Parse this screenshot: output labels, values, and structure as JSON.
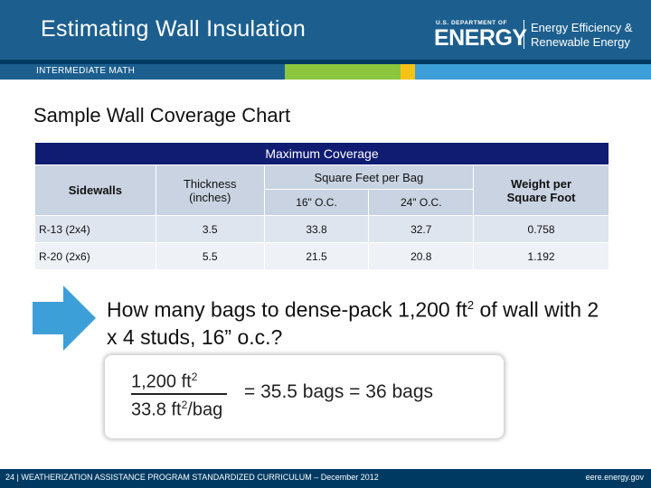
{
  "header": {
    "title": "Estimating Wall Insulation",
    "logo": {
      "dept": "U.S. DEPARTMENT OF",
      "name": "ENERGY",
      "line1": "Energy Efficiency &",
      "line2": "Renewable Energy"
    }
  },
  "level_label": "INTERMEDIATE MATH",
  "subtitle": "Sample Wall Coverage Chart",
  "table": {
    "caption": "Maximum Coverage",
    "headers": {
      "sidewalls": "Sidewalls",
      "thickness": "Thickness",
      "thickness_unit": "(inches)",
      "sqft_per_bag": "Square Feet per Bag",
      "oc16": "16\" O.C.",
      "oc24": "24\" O.C.",
      "weight": "Weight per Square Foot"
    },
    "rows": [
      {
        "sidewall": "R-13 (2x4)",
        "thickness": "3.5",
        "oc16": "33.8",
        "oc24": "32.7",
        "weight": "0.758"
      },
      {
        "sidewall": "R-20 (2x6)",
        "thickness": "5.5",
        "oc16": "21.5",
        "oc24": "20.8",
        "weight": "1.192"
      }
    ]
  },
  "question": {
    "part1": "How many bags to dense-pack 1,200 ft",
    "sup": "2",
    "part2": " of wall with 2 x 4 studs, 16” o.c.?"
  },
  "answer": {
    "numerator": "1,200 ft",
    "numerator_sup": "2",
    "denominator": "33.8 ft",
    "denominator_sup": "2",
    "denominator_tail": "/bag",
    "result": "= 35.5 bags = 36 bags"
  },
  "footer": {
    "left": "24 | WEATHERIZATION ASSISTANCE PROGRAM STANDARDIZED CURRICULUM – December 2012",
    "right": "eere.energy.gov"
  },
  "colors": {
    "header_blue": "#1c5f8f",
    "navy": "#003a63",
    "table_caption": "#0f1c72",
    "green": "#8cc63f",
    "yellow": "#f5c316",
    "arrow": "#3d9fd7"
  }
}
